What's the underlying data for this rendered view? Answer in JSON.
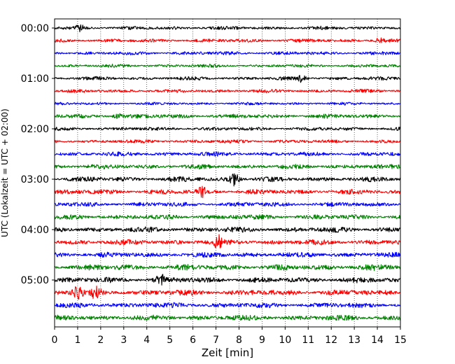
{
  "chart_data": {
    "type": "line",
    "xlabel": "Zeit  [min]",
    "ylabel": "UTC (Lokalzeit = UTC + 02:00)",
    "xlim": [
      0,
      15
    ],
    "x_ticks": [
      0,
      1,
      2,
      3,
      4,
      5,
      6,
      7,
      8,
      9,
      10,
      11,
      12,
      13,
      14,
      15
    ],
    "y_tick_labels": [
      "00:00",
      "01:00",
      "02:00",
      "03:00",
      "04:00",
      "05:00"
    ],
    "trace_colors": [
      "#000000",
      "#ff0000",
      "#0000ff",
      "#008000"
    ],
    "traces_per_hour": 4,
    "trace_count": 24,
    "grid": "vertical dotted",
    "trace_amplitude_profile": [
      1.0,
      1.0,
      1.0,
      0.9,
      1.0,
      1.0,
      0.8,
      1.2,
      1.0,
      1.0,
      1.2,
      1.3,
      1.4,
      1.4,
      1.3,
      1.4,
      1.5,
      1.5,
      1.5,
      1.7,
      1.6,
      1.6,
      1.5,
      1.5
    ],
    "events": [
      {
        "trace": 0,
        "x": 1.1,
        "amp": 2.0
      },
      {
        "trace": 1,
        "x": 14.1,
        "amp": 2.2
      },
      {
        "trace": 4,
        "x": 10.7,
        "amp": 2.5
      },
      {
        "trace": 7,
        "x": 2.7,
        "amp": 2.2
      },
      {
        "trace": 12,
        "x": 7.8,
        "amp": 3.5
      },
      {
        "trace": 13,
        "x": 6.4,
        "amp": 2.5
      },
      {
        "trace": 17,
        "x": 7.1,
        "amp": 3.0
      },
      {
        "trace": 20,
        "x": 4.6,
        "amp": 2.6
      },
      {
        "trace": 21,
        "x": 1.0,
        "amp": 3.0
      },
      {
        "trace": 21,
        "x": 1.8,
        "amp": 2.6
      }
    ]
  }
}
